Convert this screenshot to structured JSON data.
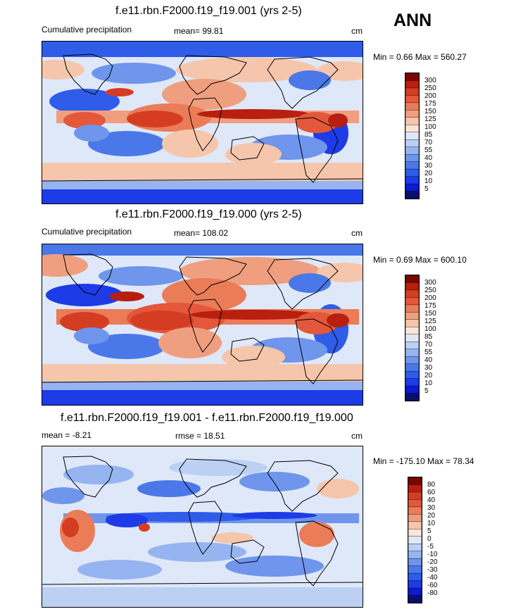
{
  "season": "ANN",
  "colors": {
    "precip_scale": [
      "#08106b",
      "#0c1bd0",
      "#1d3be6",
      "#2f5ce8",
      "#4a78e8",
      "#6f95ec",
      "#96b4f0",
      "#bcd0f4",
      "#dfe8f8",
      "#fbe5d6",
      "#f5c6ac",
      "#ef9f80",
      "#ea7c58",
      "#e3573a",
      "#d53d22",
      "#b81f0f",
      "#7b0500"
    ],
    "diff_scale": [
      "#08106b",
      "#0c1bd0",
      "#1d3be6",
      "#2f5ce8",
      "#4a78e8",
      "#6f95ec",
      "#96b4f0",
      "#bcd0f4",
      "#dfe8f8",
      "#fbe5d6",
      "#f5c6ac",
      "#ef9f80",
      "#ea7c58",
      "#e3573a",
      "#d53d22",
      "#b81f0f",
      "#7b0500"
    ]
  },
  "panels": [
    {
      "title": "f.e11.rbn.F2000.f19_f19.001 (yrs 2-5)",
      "left_label": "Cumulative precipitation",
      "center_label": "mean=  99.81",
      "units": "cm",
      "minmax": "Min =   0.66 Max = 560.27",
      "colorbar_labels": [
        "300",
        "250",
        "200",
        "175",
        "150",
        "125",
        "100",
        "85",
        "70",
        "55",
        "40",
        "30",
        "20",
        "10",
        "5"
      ]
    },
    {
      "title": "f.e11.rbn.F2000.f19_f19.000 (yrs 2-5)",
      "left_label": "Cumulative precipitation",
      "center_label": "mean= 108.02",
      "units": "cm",
      "minmax": "Min =   0.69 Max = 600.10",
      "colorbar_labels": [
        "300",
        "250",
        "200",
        "175",
        "150",
        "125",
        "100",
        "85",
        "70",
        "55",
        "40",
        "30",
        "20",
        "10",
        "5"
      ]
    },
    {
      "title": "f.e11.rbn.F2000.f19_f19.001 - f.e11.rbn.F2000.f19_f19.000",
      "left_label": "mean =   -8.21",
      "center_label": "rmse =   18.51",
      "units": "cm",
      "minmax": "Min = -175.10 Max =  78.34",
      "colorbar_labels": [
        "80",
        "60",
        "40",
        "30",
        "20",
        "10",
        "5",
        "0",
        "-5",
        "-10",
        "-20",
        "-30",
        "-40",
        "-60",
        "-80"
      ]
    }
  ]
}
